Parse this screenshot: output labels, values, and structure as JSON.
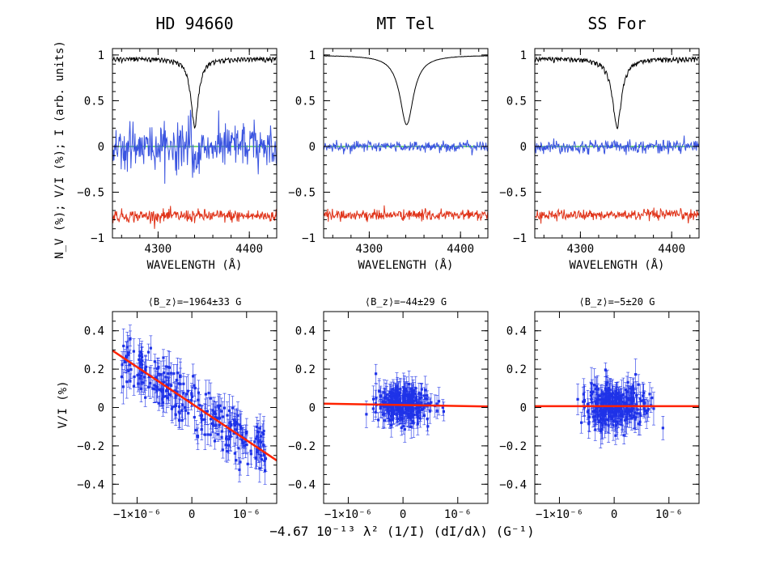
{
  "chart_data": [
    {
      "type": "line",
      "title": "HD 94660",
      "xlabel": "WAVELENGTH (Å)",
      "ylabel": "N_V (%); V/I (%); I (arb. units)",
      "xlim": [
        4250,
        4430
      ],
      "ylim": [
        -1,
        1.07
      ],
      "xticks": [
        {
          "v": 4300,
          "label": "4300"
        },
        {
          "v": 4400,
          "label": "4400"
        }
      ],
      "yticks": [
        {
          "v": 1,
          "label": "1"
        },
        {
          "v": 0.5,
          "label": "0.5"
        },
        {
          "v": 0,
          "label": "0"
        },
        {
          "v": -0.5,
          "label": "−0.5"
        },
        {
          "v": -1,
          "label": "−1"
        }
      ],
      "line_center": 4340,
      "series": [
        {
          "name": "I",
          "color": "#000000",
          "level": 0.98,
          "depth": 0.73,
          "width": 5,
          "blend_lines": 0.04
        },
        {
          "name": "V/I",
          "color": "#3a54e0",
          "level": 0,
          "noise": 0.12,
          "feature": -0.35
        },
        {
          "name": "N_V",
          "color": "#e0341a",
          "level": -0.76,
          "noise": 0.035
        }
      ],
      "zero_line": {
        "value": 0,
        "color": "#00b200"
      }
    },
    {
      "type": "line",
      "title": "MT Tel",
      "xlabel": "WAVELENGTH (Å)",
      "xlim": [
        4250,
        4430
      ],
      "ylim": [
        -1,
        1.07
      ],
      "xticks": [
        {
          "v": 4300,
          "label": "4300"
        },
        {
          "v": 4400,
          "label": "4400"
        }
      ],
      "yticks": [
        {
          "v": 1,
          "label": "1"
        },
        {
          "v": 0.5,
          "label": "0.5"
        },
        {
          "v": 0,
          "label": "0"
        },
        {
          "v": -0.5,
          "label": "−0.5"
        },
        {
          "v": -1,
          "label": "−1"
        }
      ],
      "line_center": 4341,
      "series": [
        {
          "name": "I",
          "color": "#000000",
          "level": 1.0,
          "depth": 0.76,
          "width": 9,
          "blend_lines": 0.0
        },
        {
          "name": "V/I",
          "color": "#3a54e0",
          "level": 0,
          "noise": 0.03,
          "feature": 0
        },
        {
          "name": "N_V",
          "color": "#e0341a",
          "level": -0.75,
          "noise": 0.03
        }
      ],
      "zero_line": {
        "value": 0,
        "color": "#00b200"
      }
    },
    {
      "type": "line",
      "title": "SS For",
      "xlabel": "WAVELENGTH (Å)",
      "xlim": [
        4250,
        4430
      ],
      "ylim": [
        -1,
        1.07
      ],
      "xticks": [
        {
          "v": 4300,
          "label": "4300"
        },
        {
          "v": 4400,
          "label": "4400"
        }
      ],
      "yticks": [
        {
          "v": 1,
          "label": "1"
        },
        {
          "v": 0.5,
          "label": "0.5"
        },
        {
          "v": 0,
          "label": "0"
        },
        {
          "v": -0.5,
          "label": "−0.5"
        },
        {
          "v": -1,
          "label": "−1"
        }
      ],
      "line_center": 4340,
      "series": [
        {
          "name": "I",
          "color": "#000000",
          "level": 0.98,
          "depth": 0.74,
          "width": 6,
          "blend_lines": 0.04
        },
        {
          "name": "V/I",
          "color": "#3a54e0",
          "level": 0,
          "noise": 0.035,
          "feature": 0
        },
        {
          "name": "N_V",
          "color": "#e0341a",
          "level": -0.75,
          "noise": 0.03
        }
      ],
      "zero_line": {
        "value": 0,
        "color": "#00b200"
      }
    },
    {
      "type": "scatter",
      "title": "⟨B_z⟩=−1964±33 G",
      "ylabel": "V/I (%)",
      "xlim": [
        -1.45e-06,
        1.55e-06
      ],
      "ylim": [
        -0.5,
        0.5
      ],
      "xticks": [
        {
          "v": -1e-06,
          "label": "−1×10⁻⁶"
        },
        {
          "v": 0,
          "label": "0"
        },
        {
          "v": 1e-06,
          "label": "10⁻⁶"
        }
      ],
      "yticks": [
        {
          "v": 0.4,
          "label": "0.4"
        },
        {
          "v": 0.2,
          "label": "0.2"
        },
        {
          "v": 0,
          "label": "0"
        },
        {
          "v": -0.2,
          "label": "−0.2"
        },
        {
          "v": -0.4,
          "label": "−0.4"
        }
      ],
      "n_points": 260,
      "x_spread": 6e-07,
      "y_scatter": 0.07,
      "error_bar": 0.06,
      "fit": {
        "slope": -191000,
        "intercept": 0.02,
        "color": "#ff2200"
      },
      "point_color": "#1f33e8"
    },
    {
      "type": "scatter",
      "title": "⟨B_z⟩=−44±29 G",
      "xlim": [
        -1.45e-06,
        1.55e-06
      ],
      "ylim": [
        -0.5,
        0.5
      ],
      "xticks": [
        {
          "v": -1e-06,
          "label": "−1×10⁻⁶"
        },
        {
          "v": 0,
          "label": "0"
        },
        {
          "v": 1e-06,
          "label": "10⁻⁶"
        }
      ],
      "yticks": [
        {
          "v": 0.4,
          "label": "0.4"
        },
        {
          "v": 0.2,
          "label": "0.2"
        },
        {
          "v": 0,
          "label": "0"
        },
        {
          "v": -0.2,
          "label": "−0.2"
        },
        {
          "v": -0.4,
          "label": "−0.4"
        }
      ],
      "n_points": 260,
      "x_spread": 2.5e-07,
      "y_scatter": 0.045,
      "error_bar": 0.05,
      "fit": {
        "slope": -5000,
        "intercept": 0.013,
        "color": "#ff2200"
      },
      "point_color": "#1f33e8"
    },
    {
      "type": "scatter",
      "title": "⟨B_z⟩=−5±20 G",
      "xlim": [
        -1.45e-06,
        1.55e-06
      ],
      "ylim": [
        -0.5,
        0.5
      ],
      "xticks": [
        {
          "v": -1e-06,
          "label": "−1×10⁻⁶"
        },
        {
          "v": 0,
          "label": "0"
        },
        {
          "v": 1e-06,
          "label": "10⁻⁶"
        }
      ],
      "yticks": [
        {
          "v": 0.4,
          "label": "0.4"
        },
        {
          "v": 0.2,
          "label": "0.2"
        },
        {
          "v": 0,
          "label": "0"
        },
        {
          "v": -0.2,
          "label": "−0.2"
        },
        {
          "v": -0.4,
          "label": "−0.4"
        }
      ],
      "n_points": 280,
      "x_spread": 2.8e-07,
      "y_scatter": 0.05,
      "error_bar": 0.06,
      "fit": {
        "slope": 0,
        "intercept": 0.007,
        "color": "#ff2200"
      },
      "point_color": "#1f33e8"
    }
  ],
  "labels": {
    "spectrum_ylabel": "N_V (%); V/I (%); I (arb. units)",
    "scatter_ylabel": "V/I (%)",
    "shared_xlabel": "−4.67 10⁻¹³ λ² (1/I) (dI/dλ) (G⁻¹)"
  }
}
